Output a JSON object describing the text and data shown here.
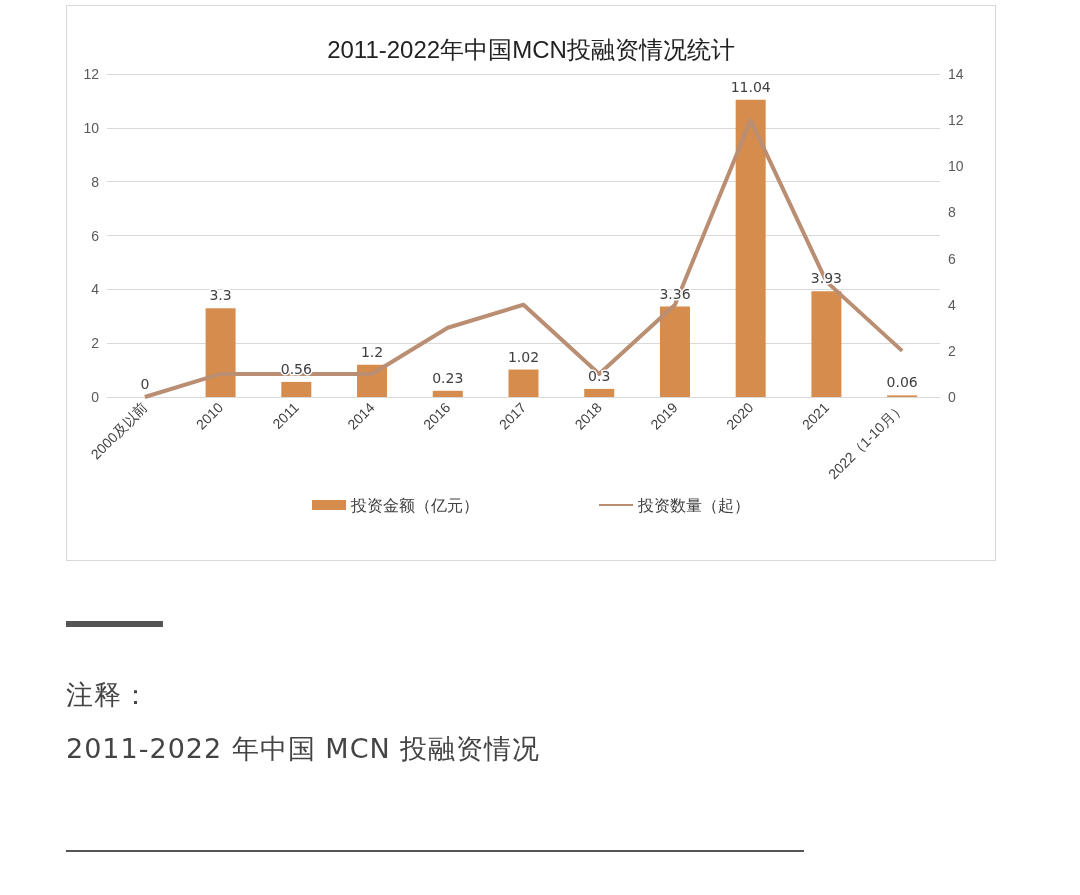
{
  "chart_data": {
    "type": "bar",
    "title": "2011-2022年中国MCN投融资情况统计",
    "categories": [
      "2000及以前",
      "2010",
      "2011",
      "2014",
      "2016",
      "2017",
      "2018",
      "2019",
      "2020",
      "2021",
      "2022（1-10月）"
    ],
    "series": [
      {
        "name": "投资金额（亿元）",
        "color": "#d58c4c",
        "values": [
          0,
          3.3,
          0.56,
          1.2,
          0.23,
          1.02,
          0.3,
          3.36,
          11.04,
          3.93,
          0.06
        ],
        "data_labels": true
      },
      {
        "name": "投资数量（起）",
        "type": "line",
        "axis": "y2",
        "color": "#b98e72",
        "values": [
          0,
          1,
          1,
          1,
          3,
          4,
          1,
          4,
          12,
          5,
          2
        ],
        "marker": "none"
      }
    ],
    "ylim": [
      0,
      12
    ],
    "yticks": [
      0,
      2,
      4,
      6,
      8,
      10,
      12
    ],
    "y2lim": [
      0,
      14
    ],
    "y2ticks": [
      0,
      2,
      4,
      6,
      8,
      10,
      12,
      14
    ],
    "grid": "y",
    "legend": "bottom",
    "annotations": [
      "注释：",
      "2011-2022 年中国 MCN 投融资情况"
    ]
  }
}
